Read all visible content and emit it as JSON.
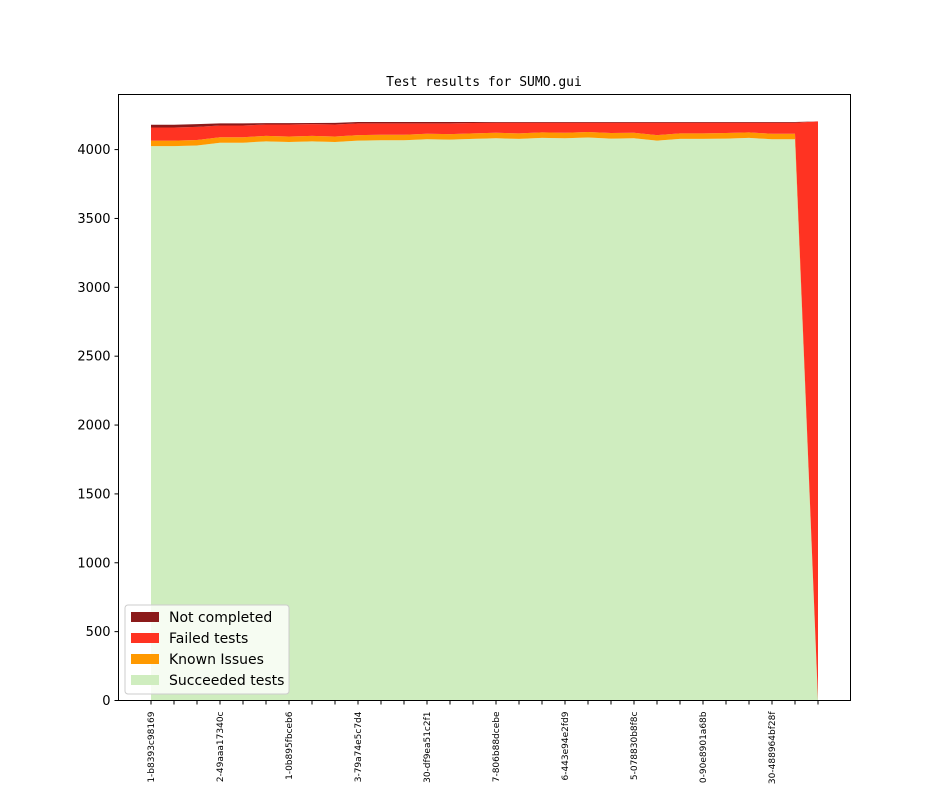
{
  "chart_data": {
    "type": "area",
    "title": "Test results for SUMO.gui",
    "xlabel": "",
    "ylabel": "",
    "ylim": [
      0,
      4400
    ],
    "yticks": [
      0,
      500,
      1000,
      1500,
      2000,
      2500,
      3000,
      3500,
      4000
    ],
    "legend_position": "lower-left",
    "grid": false,
    "stacked": true,
    "x": [
      0,
      1,
      2,
      3,
      4,
      5,
      6,
      7,
      8,
      9,
      10,
      11,
      12,
      13,
      14,
      15,
      16,
      17,
      18,
      19,
      20,
      21,
      22,
      23,
      24,
      25,
      26,
      27,
      28,
      29
    ],
    "xtick_positions": [
      0,
      3,
      6,
      9,
      12,
      15,
      18,
      21,
      24,
      27
    ],
    "xtick_labels": [
      "1-b8393c98169",
      "2-49aaa17340c",
      "1-0b895fbceb6",
      "3-79a74e5c7d4",
      "30-df9ea51c2f1",
      "7-806b88dcebe",
      "6-443e94e2fd9",
      "5-078830b8f8c",
      "0-90e8901a68b",
      "30-488964bf28f"
    ],
    "series": [
      {
        "name": "Succeeded tests",
        "color": "#cfedbf",
        "values": [
          4025,
          4025,
          4030,
          4050,
          4050,
          4060,
          4055,
          4060,
          4055,
          4065,
          4068,
          4068,
          4075,
          4072,
          4078,
          4082,
          4078,
          4085,
          4082,
          4088,
          4080,
          4082,
          4065,
          4078,
          4078,
          4080,
          4085,
          4075,
          4075,
          0
        ]
      },
      {
        "name": "Known Issues",
        "color": "#ff9900",
        "values": [
          40,
          40,
          40,
          40,
          40,
          40,
          40,
          40,
          40,
          40,
          40,
          40,
          40,
          40,
          40,
          40,
          40,
          40,
          40,
          40,
          40,
          40,
          40,
          40,
          40,
          40,
          40,
          40,
          40,
          0
        ]
      },
      {
        "name": "Failed tests",
        "color": "#ff3322",
        "values": [
          95,
          95,
          95,
          85,
          85,
          82,
          87,
          85,
          87,
          85,
          82,
          82,
          75,
          78,
          75,
          73,
          77,
          70,
          73,
          67,
          75,
          73,
          90,
          77,
          77,
          75,
          70,
          80,
          80,
          4205
        ]
      },
      {
        "name": "Not completed",
        "color": "#8b1a1a",
        "values": [
          20,
          20,
          20,
          15,
          15,
          10,
          10,
          8,
          12,
          10,
          10,
          10,
          10,
          10,
          7,
          5,
          5,
          5,
          5,
          5,
          5,
          5,
          5,
          5,
          5,
          5,
          5,
          5,
          5,
          0
        ]
      }
    ]
  }
}
